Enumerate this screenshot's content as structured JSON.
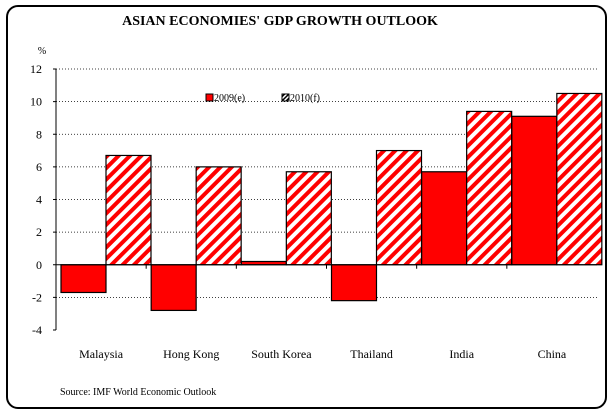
{
  "chart_data": {
    "type": "bar",
    "title": "ASIAN ECONOMIES' GDP GROWTH OUTLOOK",
    "ylabel": "%",
    "ylim": [
      -4,
      12
    ],
    "yticks": [
      -4,
      -2,
      0,
      2,
      4,
      6,
      8,
      10,
      12
    ],
    "grid": true,
    "legend_placement": "top-center",
    "categories": [
      "Malaysia",
      "Hong Kong",
      "South Korea",
      "Thailand",
      "India",
      "China"
    ],
    "series": [
      {
        "name": "2009(e)",
        "values": [
          -1.7,
          -2.8,
          0.2,
          -2.2,
          5.7,
          9.1
        ],
        "color": "#ff0000",
        "pattern": "solid"
      },
      {
        "name": "2010(f)",
        "values": [
          6.7,
          6.0,
          5.7,
          7.0,
          9.4,
          10.5
        ],
        "color": "#ff0000",
        "pattern": "diagonal-stripes"
      }
    ],
    "source": "Source: IMF World Economic Outlook"
  }
}
